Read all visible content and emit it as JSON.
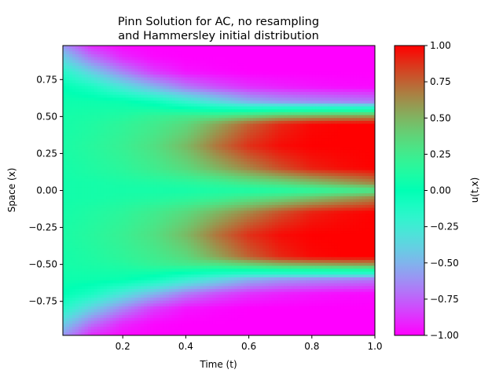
{
  "chart_data": {
    "type": "heatmap",
    "title_lines": [
      "Pinn Solution for AC, no resampling",
      "and Hammersley initial distribution"
    ],
    "xlabel": "Time (t)",
    "ylabel": "Space (x)",
    "xlim": [
      0.01,
      1.0
    ],
    "ylim": [
      -0.98,
      0.98
    ],
    "x_ticks": [
      {
        "value": 0.2,
        "label": "0.2"
      },
      {
        "value": 0.4,
        "label": "0.4"
      },
      {
        "value": 0.6,
        "label": "0.6"
      },
      {
        "value": 0.8,
        "label": "0.8"
      },
      {
        "value": 1.0,
        "label": "1.0"
      }
    ],
    "y_ticks": [
      {
        "value": 0.75,
        "label": "0.75"
      },
      {
        "value": 0.5,
        "label": "0.50"
      },
      {
        "value": 0.25,
        "label": "0.25"
      },
      {
        "value": 0.0,
        "label": "0.00"
      },
      {
        "value": -0.25,
        "label": "−0.25"
      },
      {
        "value": -0.5,
        "label": "−0.50"
      },
      {
        "value": -0.75,
        "label": "−0.75"
      }
    ],
    "colormap": "rainbow",
    "colorbar": {
      "label": "u(t,x)",
      "range": [
        -1.0,
        1.0
      ],
      "ticks": [
        {
          "value": 1.0,
          "label": "1.00"
        },
        {
          "value": 0.75,
          "label": "0.75"
        },
        {
          "value": 0.5,
          "label": "0.50"
        },
        {
          "value": 0.25,
          "label": "0.25"
        },
        {
          "value": 0.0,
          "label": "0.00"
        },
        {
          "value": -0.25,
          "label": "−0.25"
        },
        {
          "value": -0.5,
          "label": "−0.50"
        },
        {
          "value": -0.75,
          "label": "−0.75"
        },
        {
          "value": -1.0,
          "label": "−1.00"
        }
      ]
    },
    "field": {
      "t_samples": [
        0.01,
        0.1,
        0.2,
        0.3,
        0.4,
        0.5,
        0.6,
        0.7,
        0.8,
        0.9,
        1.0
      ],
      "x_samples": [
        0.98,
        0.9,
        0.8,
        0.7,
        0.6,
        0.5,
        0.45,
        0.3,
        0.15,
        0.05,
        0.0,
        -0.05,
        -0.15,
        -0.3,
        -0.45,
        -0.5,
        -0.6,
        -0.7,
        -0.8,
        -0.9,
        -0.98
      ],
      "u": [
        [
          -0.6,
          -0.9,
          -0.98,
          -1.0,
          -1.0,
          -1.0,
          -1.0,
          -1.0,
          -1.0,
          -1.0,
          -1.0
        ],
        [
          -0.4,
          -0.7,
          -0.9,
          -0.98,
          -1.0,
          -1.0,
          -1.0,
          -1.0,
          -1.0,
          -1.0,
          -1.0
        ],
        [
          -0.15,
          -0.4,
          -0.65,
          -0.85,
          -0.95,
          -0.98,
          -1.0,
          -1.0,
          -1.0,
          -1.0,
          -1.0
        ],
        [
          0.0,
          -0.1,
          -0.3,
          -0.5,
          -0.68,
          -0.8,
          -0.88,
          -0.92,
          -0.95,
          -0.97,
          -0.98
        ],
        [
          0.05,
          0.05,
          0.03,
          -0.05,
          -0.2,
          -0.35,
          -0.5,
          -0.58,
          -0.62,
          -0.65,
          -0.68
        ],
        [
          0.08,
          0.1,
          0.13,
          0.2,
          0.25,
          0.3,
          0.4,
          0.5,
          0.55,
          0.58,
          0.6
        ],
        [
          0.08,
          0.12,
          0.18,
          0.25,
          0.35,
          0.55,
          0.75,
          0.9,
          0.98,
          1.0,
          1.0
        ],
        [
          0.1,
          0.15,
          0.22,
          0.32,
          0.48,
          0.7,
          0.88,
          0.97,
          1.0,
          1.0,
          1.0
        ],
        [
          0.08,
          0.12,
          0.17,
          0.25,
          0.35,
          0.5,
          0.65,
          0.8,
          0.92,
          0.97,
          1.0
        ],
        [
          0.07,
          0.08,
          0.1,
          0.12,
          0.15,
          0.2,
          0.28,
          0.35,
          0.45,
          0.55,
          0.65
        ],
        [
          0.07,
          0.08,
          0.08,
          0.08,
          0.08,
          0.1,
          0.1,
          0.12,
          0.15,
          0.2,
          0.25
        ],
        [
          0.07,
          0.08,
          0.1,
          0.12,
          0.15,
          0.2,
          0.28,
          0.35,
          0.45,
          0.55,
          0.65
        ],
        [
          0.08,
          0.12,
          0.17,
          0.25,
          0.35,
          0.5,
          0.65,
          0.8,
          0.92,
          0.97,
          1.0
        ],
        [
          0.1,
          0.15,
          0.22,
          0.32,
          0.48,
          0.7,
          0.88,
          0.97,
          1.0,
          1.0,
          1.0
        ],
        [
          0.08,
          0.12,
          0.18,
          0.25,
          0.35,
          0.55,
          0.75,
          0.9,
          0.98,
          1.0,
          1.0
        ],
        [
          0.08,
          0.1,
          0.13,
          0.2,
          0.25,
          0.3,
          0.4,
          0.5,
          0.55,
          0.58,
          0.6
        ],
        [
          0.05,
          0.05,
          0.03,
          -0.05,
          -0.2,
          -0.35,
          -0.5,
          -0.58,
          -0.62,
          -0.65,
          -0.68
        ],
        [
          0.0,
          -0.1,
          -0.3,
          -0.5,
          -0.68,
          -0.8,
          -0.88,
          -0.92,
          -0.95,
          -0.97,
          -0.98
        ],
        [
          -0.15,
          -0.4,
          -0.65,
          -0.85,
          -0.95,
          -0.98,
          -1.0,
          -1.0,
          -1.0,
          -1.0,
          -1.0
        ],
        [
          -0.4,
          -0.7,
          -0.9,
          -0.98,
          -1.0,
          -1.0,
          -1.0,
          -1.0,
          -1.0,
          -1.0,
          -1.0
        ],
        [
          -0.6,
          -0.9,
          -0.98,
          -1.0,
          -1.0,
          -1.0,
          -1.0,
          -1.0,
          -1.0,
          -1.0,
          -1.0
        ]
      ]
    }
  }
}
